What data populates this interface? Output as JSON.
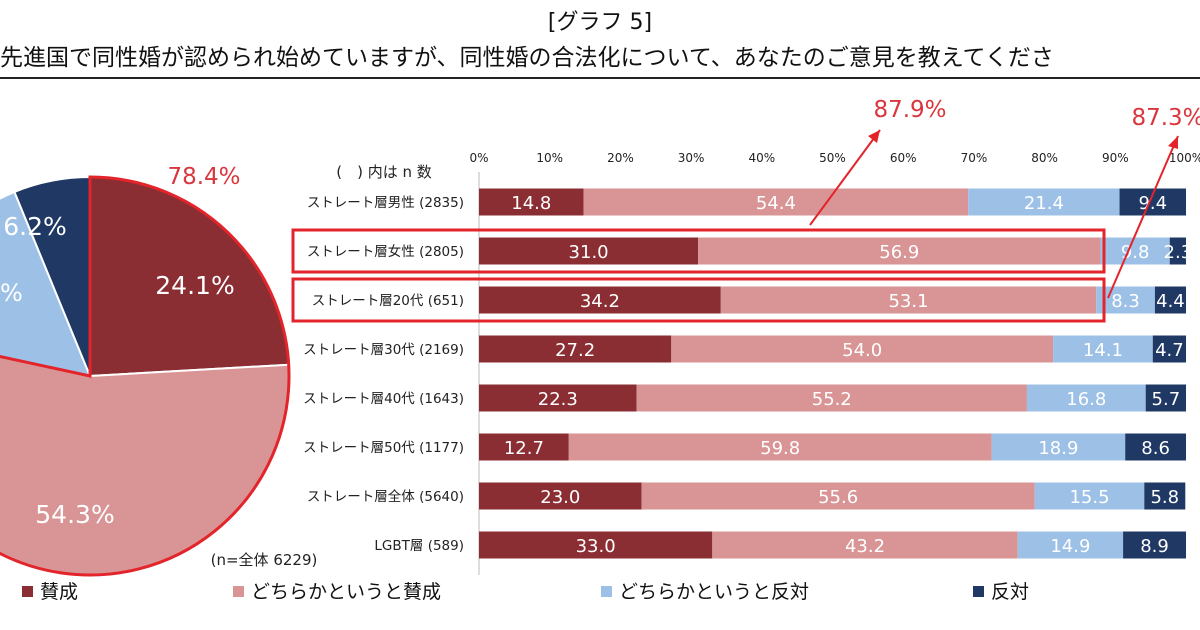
{
  "header": {
    "graph_label": "[グラフ 5]",
    "question": "先進国で同性婚が認められ始めていますが、同性婚の合法化について、あなたのご意見を教えてくださ"
  },
  "pie_chart": {
    "sample_note": "(n=全体 6229)",
    "combined_callout": "78.4%",
    "partial_label": "%"
  },
  "bar_chart": {
    "column_note": "(　) 内は n 数",
    "callout_female": "87.9%",
    "callout_20s": "87.3%"
  },
  "legend": [
    {
      "label": "賛成",
      "color": "#8b2e33"
    },
    {
      "label": "どちらかというと賛成",
      "color": "#d99595"
    },
    {
      "label": "どちらかというと反対",
      "color": "#9dc0e6"
    },
    {
      "label": "反対",
      "color": "#1f3864"
    }
  ],
  "chart_data": [
    {
      "type": "pie",
      "categories": [
        "賛成",
        "どちらかというと賛成",
        "どちらかというと反対",
        "反対"
      ],
      "values": [
        24.1,
        54.3,
        15.4,
        6.2
      ],
      "labels": [
        "24.1%",
        "54.3%",
        "",
        "6.2%"
      ],
      "colors": [
        "#8b2e33",
        "#d99595",
        "#9dc0e6",
        "#1f3864"
      ],
      "note": "(n=全体 6229)"
    },
    {
      "type": "bar",
      "orientation": "horizontal-stacked-100",
      "categories": [
        "ストレート層男性 (2835)",
        "ストレート層女性 (2805)",
        "ストレート層20代 (651)",
        "ストレート層30代 (2169)",
        "ストレート層40代 (1643)",
        "ストレート層50代 (1177)",
        "ストレート層全体 (5640)",
        "LGBT層 (589)"
      ],
      "series": [
        {
          "name": "賛成",
          "values": [
            14.8,
            31.0,
            34.2,
            27.2,
            22.3,
            12.7,
            23.0,
            33.0
          ],
          "labels": [
            "14.8",
            "31.0",
            "34.2",
            "27.2",
            "22.3",
            "12.7",
            "23.0",
            "33.0"
          ],
          "color": "#8b2e33"
        },
        {
          "name": "どちらかというと賛成",
          "values": [
            54.4,
            56.9,
            53.1,
            54.0,
            55.2,
            59.8,
            55.6,
            43.2
          ],
          "labels": [
            "54.4",
            "56.9",
            "53.1",
            "54.0",
            "55.2",
            "59.8",
            "55.6",
            "43.2"
          ],
          "color": "#d99595"
        },
        {
          "name": "どちらかというと反対",
          "values": [
            21.4,
            9.8,
            8.3,
            14.1,
            16.8,
            18.9,
            15.5,
            14.9
          ],
          "labels": [
            "21.4",
            "9.8",
            "8.3",
            "14.1",
            "16.8",
            "18.9",
            "15.5",
            "14.9"
          ],
          "color": "#9dc0e6"
        },
        {
          "name": "反対",
          "values": [
            9.4,
            2.3,
            4.4,
            4.7,
            5.7,
            8.6,
            5.8,
            8.9
          ],
          "labels": [
            "9.4",
            "2.3",
            "4.4",
            "4.7",
            "5.7",
            "8.6",
            "5.8",
            "8.9"
          ],
          "color": "#1f3864"
        }
      ],
      "xticks": [
        "0%",
        "10%",
        "20%",
        "30%",
        "40%",
        "50%",
        "60%",
        "70%",
        "80%",
        "90%",
        "100%"
      ],
      "xlim": [
        0,
        100
      ],
      "highlighted_rows": [
        "ストレート層女性 (2805)",
        "ストレート層20代 (651)"
      ]
    }
  ]
}
